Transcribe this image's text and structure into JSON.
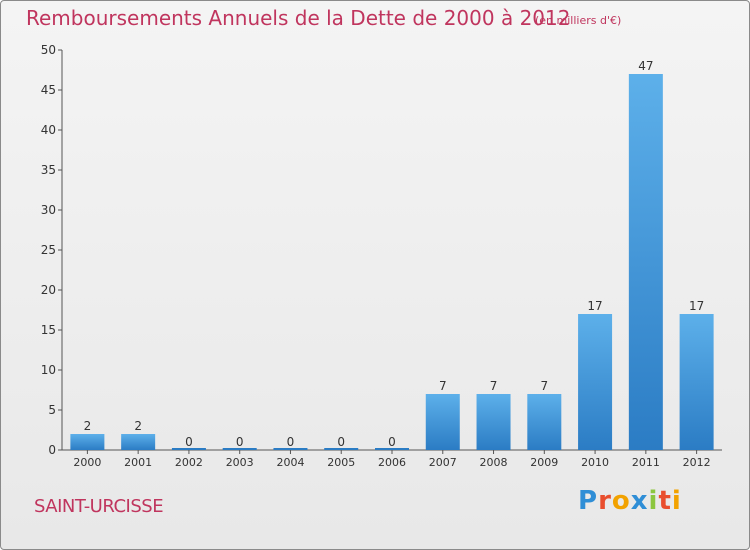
{
  "chart_data": {
    "type": "bar",
    "title": "Remboursements Annuels de la Dette de 2000 à 2012",
    "subtitle": "(en milliers d'€)",
    "categories": [
      "2000",
      "2001",
      "2002",
      "2003",
      "2004",
      "2005",
      "2006",
      "2007",
      "2008",
      "2009",
      "2010",
      "2011",
      "2012"
    ],
    "values": [
      2,
      2,
      0,
      0,
      0,
      0,
      0,
      7,
      7,
      7,
      17,
      47,
      17
    ],
    "ylim": [
      0,
      50
    ],
    "yticks": [
      0,
      5,
      10,
      15,
      20,
      25,
      30,
      35,
      40,
      45,
      50
    ],
    "grid": false,
    "bar_color": "#3a8fd6"
  },
  "footer": {
    "city": "SAINT-URCISSE",
    "logo": "Proxiti"
  },
  "colors": {
    "title": "#c0355e",
    "bar_light": "#5db0ea",
    "bar_dark": "#2b7cc4"
  }
}
